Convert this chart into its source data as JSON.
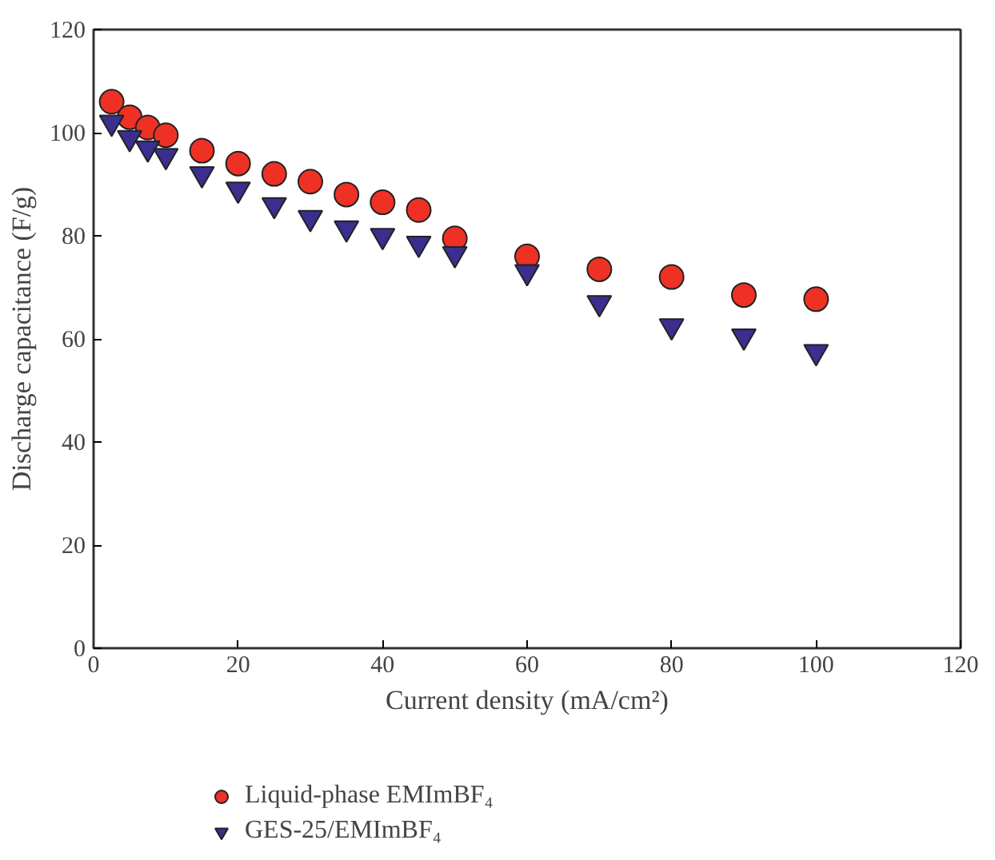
{
  "chart_data": {
    "type": "scatter",
    "xlabel": "Current density (mA/cm²)",
    "ylabel": "Discharge capacitance (F/g)",
    "x": [
      2.5,
      5,
      7.5,
      10,
      15,
      20,
      25,
      30,
      35,
      40,
      45,
      50,
      60,
      70,
      80,
      90,
      100
    ],
    "series": [
      {
        "name": "Liquid-phase EMImBF₄",
        "color": "#ee3124",
        "marker": "circle",
        "values": [
          106,
          103,
          101,
          99.5,
          96.5,
          94,
          92,
          90.5,
          88,
          86.5,
          85,
          79.5,
          76,
          73.5,
          72,
          68.5,
          67.7
        ]
      },
      {
        "name": "GES-25/EMImBF₄",
        "color": "#3a2f8f",
        "marker": "triangle",
        "values": [
          102,
          99,
          97,
          95.5,
          92,
          89,
          86,
          83.5,
          81.5,
          80,
          78.5,
          76.5,
          73,
          67,
          62.5,
          60.5,
          57.5
        ]
      }
    ],
    "xlim": [
      0,
      120
    ],
    "xticks": [
      0,
      20,
      40,
      60,
      80,
      100,
      120
    ],
    "ylim": [
      0,
      120
    ],
    "yticks": [
      0,
      20,
      40,
      60,
      80,
      100,
      120
    ],
    "grid": false,
    "legend": "bottom"
  }
}
